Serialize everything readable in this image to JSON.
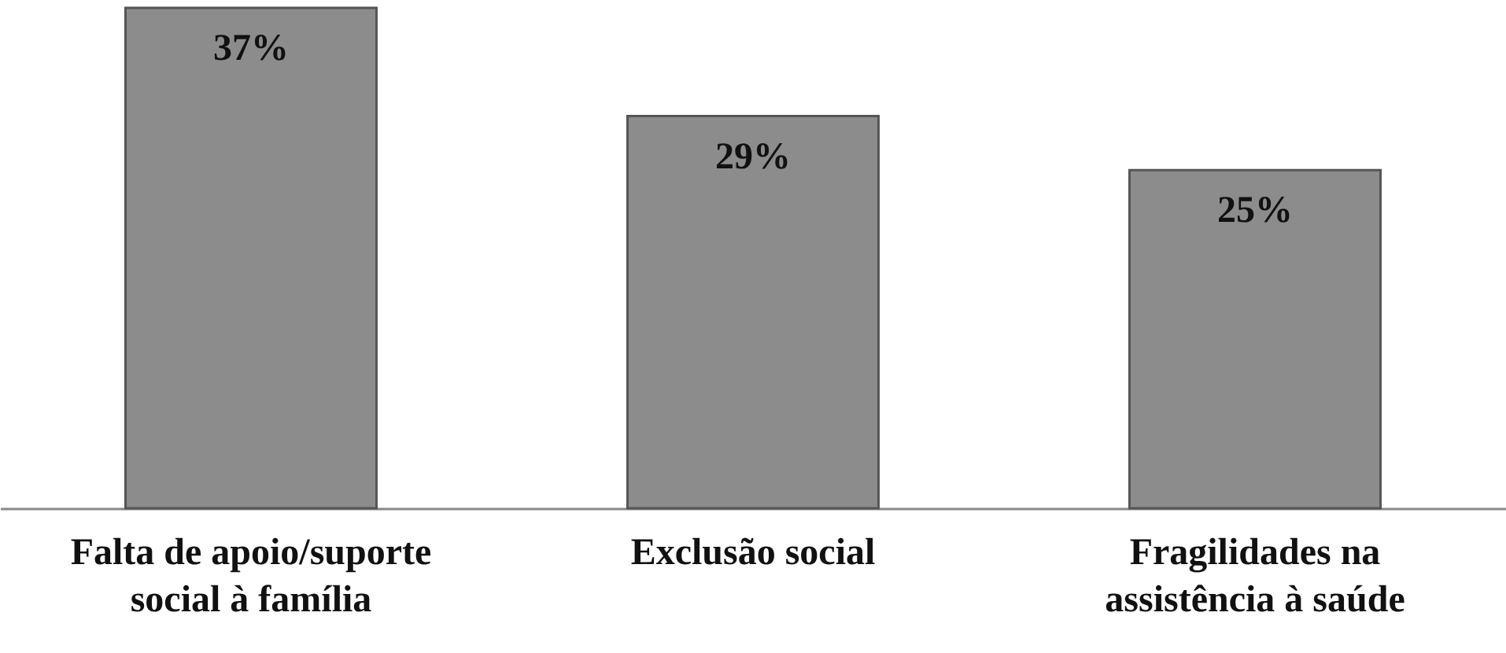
{
  "chart_data": {
    "type": "bar",
    "categories": [
      "Falta de apoio/suporte social à família",
      "Exclusão social",
      "Fragilidades na assistência à saúde"
    ],
    "values": [
      37,
      29,
      25
    ],
    "value_labels": [
      "37%",
      "29%",
      "25%"
    ],
    "color": "#8c8c8c"
  }
}
